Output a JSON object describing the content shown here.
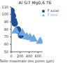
{
  "chart_data": {
    "type": "scatter",
    "title": "Al Si7 Mg0,6 T6",
    "x_label": "Taille maximale des pores (µm)",
    "xlim": [
      0,
      700
    ],
    "xticks": [
      0,
      200,
      400,
      600
    ],
    "ylim": [
      50,
      110
    ],
    "yticks": [
      50,
      60,
      70,
      80,
      90,
      100,
      110
    ],
    "legend": "top-right",
    "series": [
      {
        "name": "F axial",
        "color": "#1f4e9a",
        "marker": "circle",
        "x": [
          10,
          20,
          40,
          60,
          80,
          150,
          160,
          220
        ],
        "values": [
          105,
          100,
          98,
          92,
          88,
          80,
          78,
          72
        ]
      },
      {
        "name": "F tors",
        "color": "#6fa8dc",
        "marker": "triangle",
        "x": [
          100,
          250,
          350,
          420,
          500,
          650
        ],
        "values": [
          78,
          75,
          70,
          69,
          67,
          64
        ]
      }
    ]
  }
}
